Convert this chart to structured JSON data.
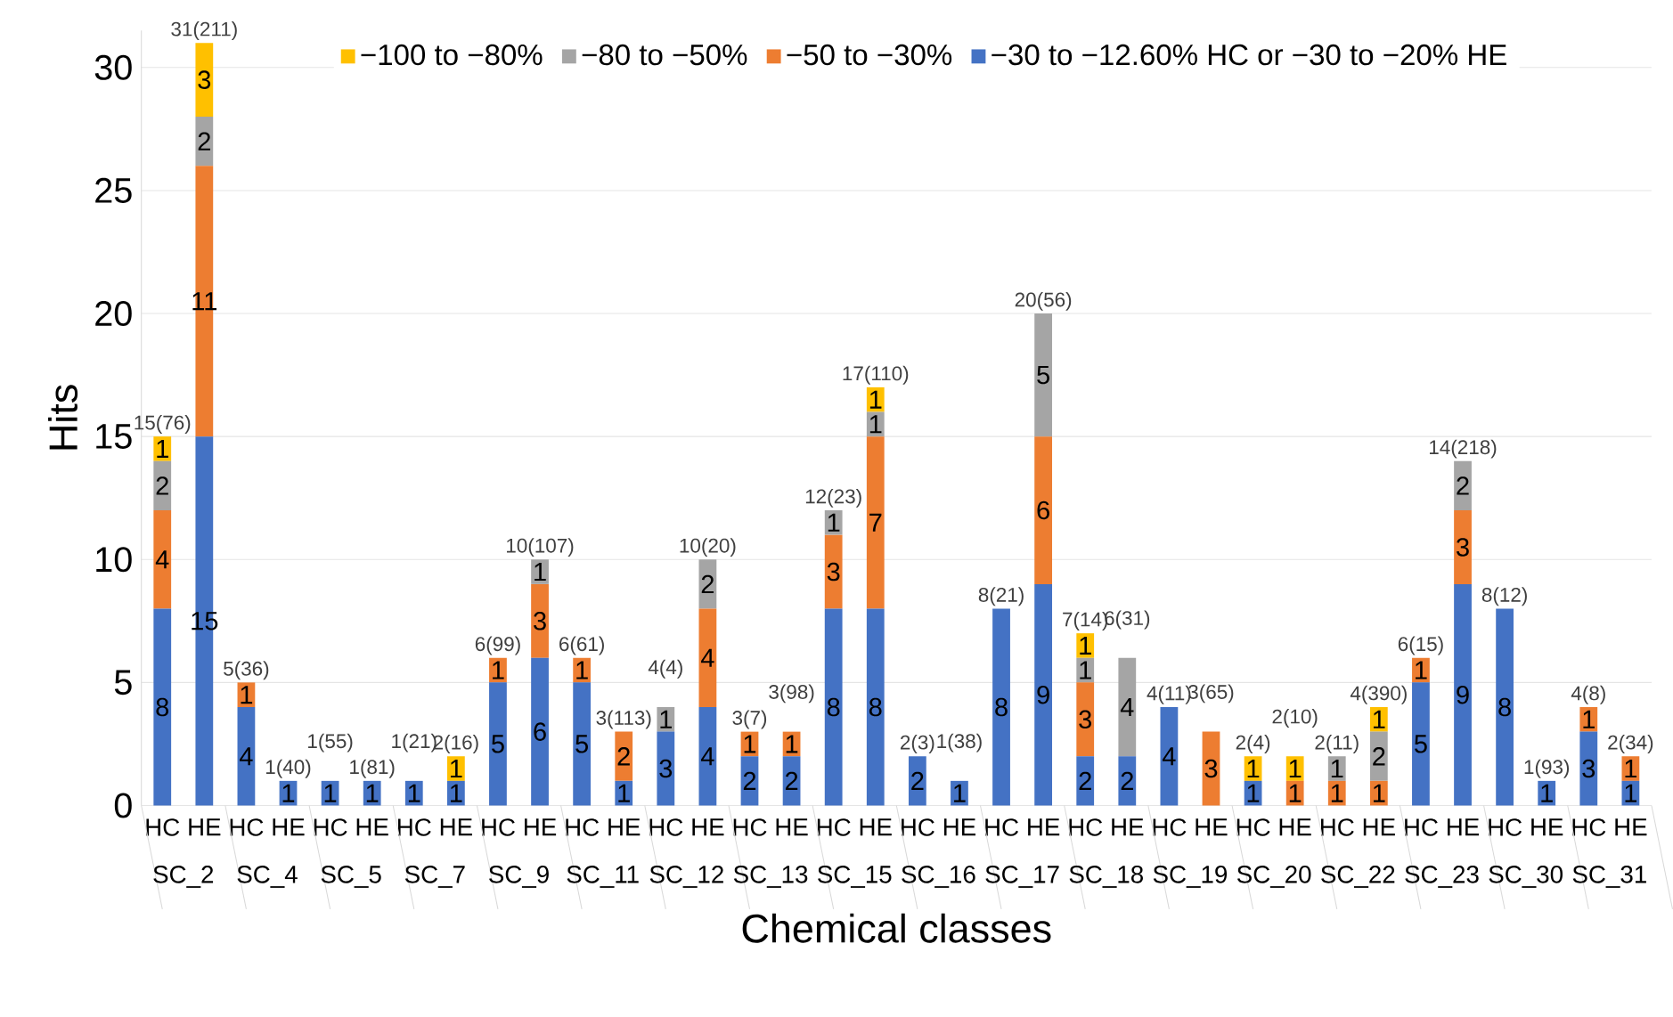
{
  "chart_data": {
    "type": "bar",
    "stacked": true,
    "xlabel": "Chemical classes",
    "ylabel": "Hits",
    "categories": [
      "HC",
      "HE",
      "HC",
      "HE",
      "HC",
      "HE",
      "HC",
      "HE",
      "HC",
      "HE",
      "HC",
      "HE",
      "HC",
      "HE",
      "HC",
      "HE",
      "HC",
      "HE",
      "HC",
      "HE",
      "HC",
      "HE",
      "HC",
      "HE",
      "HC",
      "HE",
      "HC",
      "HE",
      "HC",
      "HE",
      "HC",
      "HE",
      "HC",
      "HE",
      "HC",
      "HE"
    ],
    "annotations": [
      "SC_2",
      "SC_4",
      "SC_5",
      "SC_7",
      "SC_9",
      "SC_11",
      "SC_12",
      "SC_13",
      "SC_15",
      "SC_16",
      "SC_17",
      "SC_18",
      "SC_19",
      "SC_20",
      "SC_22",
      "SC_23",
      "SC_30",
      "SC_31"
    ],
    "series": [
      {
        "name": "−30 to −12.60% HC or −30 to −20% HE",
        "color": "#4472c4",
        "values": [
          8,
          15,
          4,
          1,
          1,
          1,
          1,
          1,
          5,
          6,
          5,
          1,
          3,
          4,
          2,
          2,
          8,
          8,
          2,
          1,
          8,
          9,
          2,
          2,
          4,
          null,
          1,
          null,
          null,
          null,
          5,
          9,
          8,
          1,
          3,
          1
        ]
      },
      {
        "name": "−50 to −30%",
        "color": "#ed7d31",
        "values": [
          4,
          11,
          1,
          null,
          null,
          null,
          null,
          null,
          1,
          3,
          1,
          2,
          null,
          4,
          1,
          1,
          3,
          7,
          null,
          null,
          null,
          6,
          3,
          null,
          null,
          3,
          null,
          1,
          1,
          1,
          1,
          3,
          null,
          null,
          1,
          1
        ]
      },
      {
        "name": "−80 to −50%",
        "color": "#a5a5a5",
        "values": [
          2,
          2,
          null,
          null,
          null,
          null,
          null,
          null,
          null,
          1,
          null,
          null,
          1,
          2,
          null,
          null,
          1,
          1,
          null,
          null,
          null,
          5,
          1,
          4,
          null,
          null,
          null,
          null,
          1,
          2,
          null,
          2,
          null,
          null,
          null,
          null
        ]
      },
      {
        "name": "−100 to −80%",
        "color": "#ffc000",
        "values": [
          1,
          3,
          null,
          null,
          null,
          null,
          null,
          1,
          null,
          null,
          null,
          null,
          null,
          null,
          null,
          null,
          null,
          1,
          null,
          null,
          null,
          null,
          1,
          null,
          null,
          null,
          1,
          1,
          null,
          1,
          null,
          null,
          null,
          null,
          null,
          null
        ]
      }
    ],
    "totals": [
      "15(76)",
      "31(211)",
      "5(36)",
      "1(40)",
      "1(55)",
      "1(81)",
      "1(21)",
      "2(16)",
      "6(99)",
      "10(107)",
      "6(61)",
      "3(113)",
      "4(4)",
      "10(20)",
      "3(7)",
      "3(98)",
      "12(23)",
      "17(110)",
      "2(3)",
      "1(38)",
      "8(21)",
      "20(56)",
      "7(14)",
      "6(31)",
      "4(11)",
      "3(65)",
      "2(4)",
      "2(10)",
      "2(11)",
      "4(390)",
      "6(15)",
      "14(218)",
      "8(12)",
      "1(93)",
      "4(8)",
      "2(34)"
    ],
    "data_labels": true,
    "ylim": [
      0,
      31.5
    ],
    "yticks": [
      0,
      5,
      10,
      15,
      20,
      25,
      30
    ],
    "grid": "y",
    "legend": "top"
  }
}
